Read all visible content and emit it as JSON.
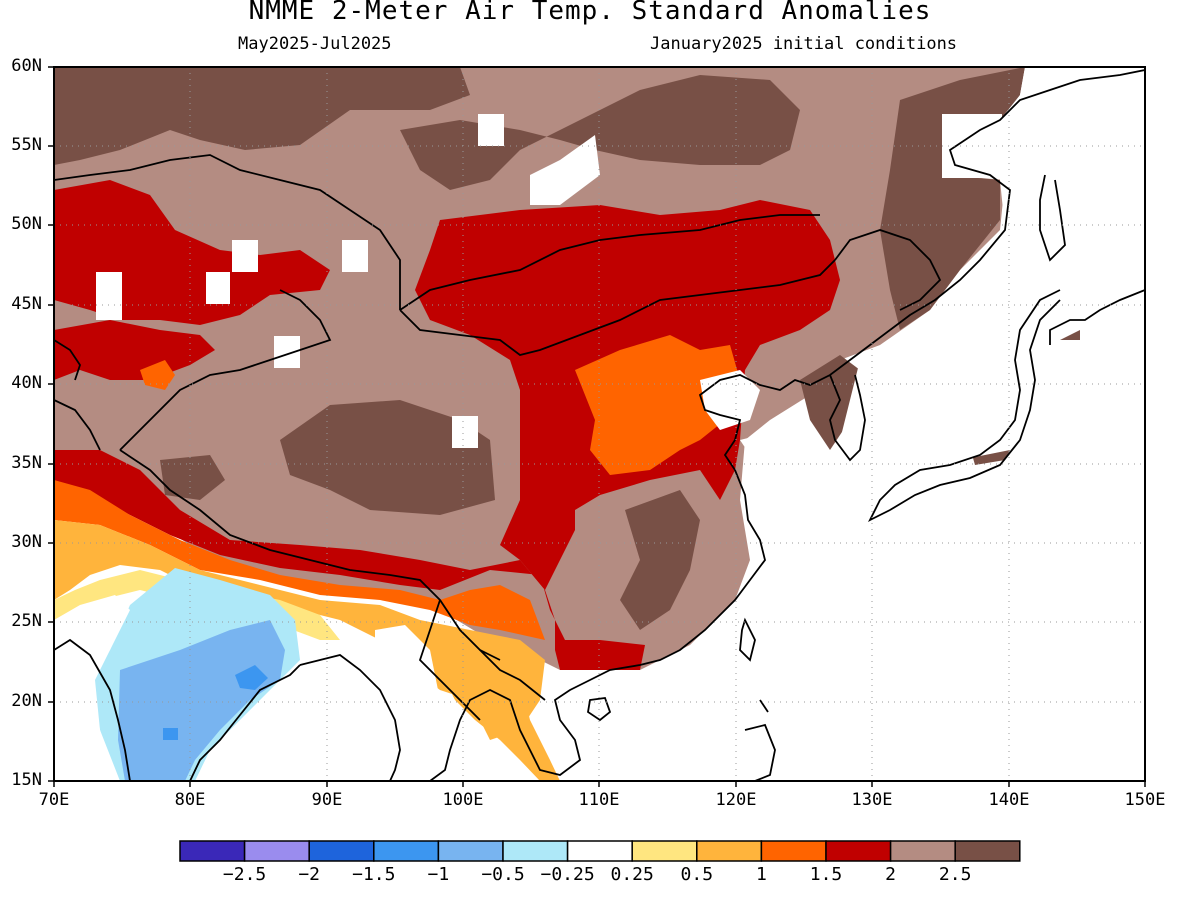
{
  "title": "NMME 2-Meter Air Temp. Standard Anomalies",
  "period": "May2025-Jul2025",
  "initial_conditions": "January2025 initial conditions",
  "lat_labels": [
    "60N",
    "55N",
    "50N",
    "45N",
    "40N",
    "35N",
    "30N",
    "25N",
    "20N",
    "15N"
  ],
  "lon_labels": [
    "70E",
    "80E",
    "90E",
    "100E",
    "110E",
    "120E",
    "130E",
    "140E",
    "150E"
  ],
  "colorbar": {
    "colors": [
      "#3a28b8",
      "#9a8cee",
      "#1e64dc",
      "#3c96f0",
      "#78b4f0",
      "#aee8f8",
      "#ffffff",
      "#ffe680",
      "#ffb43c",
      "#ff6400",
      "#c00000",
      "#b48c82",
      "#785046"
    ],
    "labels": [
      "-2.5",
      "-2",
      "-1.5",
      "-1",
      "-0.5",
      "-0.25",
      "0.25",
      "0.5",
      "1",
      "1.5",
      "2",
      "2.5"
    ]
  },
  "map_extent": {
    "lon": [
      70,
      150
    ],
    "lat": [
      15,
      60
    ]
  }
}
